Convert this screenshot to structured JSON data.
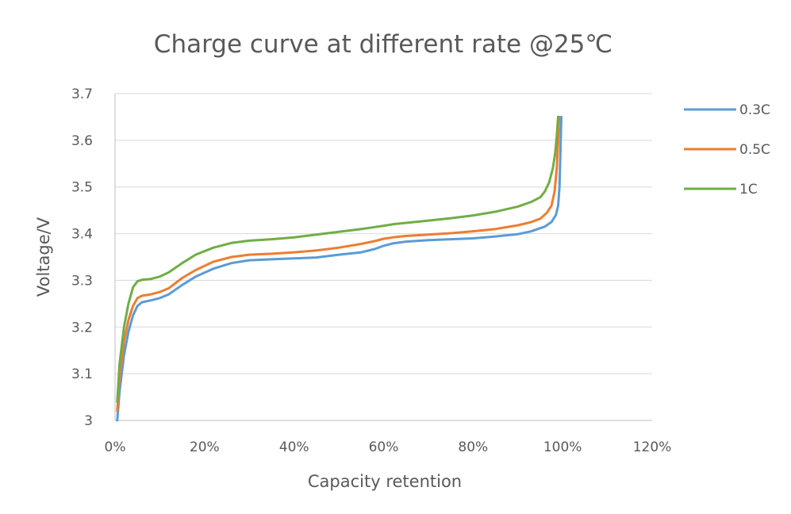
{
  "chart_data": {
    "type": "line",
    "title": "Charge curve at different rate @25℃",
    "xlabel": "Capacity retention",
    "ylabel": "Voltage/V",
    "xlim": [
      0,
      120
    ],
    "ylim": [
      3.0,
      3.7
    ],
    "x_ticks": [
      0,
      20,
      40,
      60,
      80,
      100,
      120
    ],
    "x_tick_labels": [
      "0%",
      "20%",
      "40%",
      "60%",
      "80%",
      "100%",
      "120%"
    ],
    "y_ticks": [
      3.0,
      3.1,
      3.2,
      3.3,
      3.4,
      3.5,
      3.6,
      3.7
    ],
    "y_tick_labels": [
      "3",
      "3.1",
      "3.2",
      "3.3",
      "3.4",
      "3.5",
      "3.6",
      "3.7"
    ],
    "grid": true,
    "legend_position": "right",
    "series": [
      {
        "name": "0.3C",
        "color": "#5b9bd5",
        "x": [
          0.5,
          1.0,
          2.0,
          3.0,
          4.0,
          5.0,
          6.0,
          8.0,
          10.0,
          12.0,
          15.0,
          18.0,
          22.0,
          26.0,
          30.0,
          35.0,
          40.0,
          45.0,
          50.0,
          55.0,
          58.0,
          60.0,
          62.0,
          65.0,
          70.0,
          75.0,
          80.0,
          85.0,
          90.0,
          93.0,
          96.0,
          97.5,
          98.5,
          99.0,
          99.3,
          99.5,
          99.7
        ],
        "values": [
          3.0,
          3.06,
          3.14,
          3.19,
          3.225,
          3.245,
          3.253,
          3.257,
          3.262,
          3.27,
          3.29,
          3.308,
          3.325,
          3.337,
          3.343,
          3.345,
          3.347,
          3.349,
          3.355,
          3.36,
          3.367,
          3.374,
          3.379,
          3.383,
          3.386,
          3.388,
          3.39,
          3.394,
          3.399,
          3.405,
          3.415,
          3.425,
          3.44,
          3.46,
          3.5,
          3.57,
          3.65
        ]
      },
      {
        "name": "0.5C",
        "color": "#ed7d31",
        "x": [
          0.5,
          1.0,
          2.0,
          3.0,
          4.0,
          5.0,
          6.0,
          8.0,
          10.0,
          12.0,
          15.0,
          18.0,
          22.0,
          26.0,
          30.0,
          35.0,
          40.0,
          45.0,
          50.0,
          55.0,
          58.0,
          60.0,
          62.0,
          65.0,
          70.0,
          75.0,
          80.0,
          85.0,
          90.0,
          93.0,
          95.0,
          96.5,
          97.5,
          98.2,
          98.7,
          99.0,
          99.2
        ],
        "values": [
          3.02,
          3.09,
          3.17,
          3.215,
          3.245,
          3.262,
          3.267,
          3.27,
          3.275,
          3.283,
          3.305,
          3.322,
          3.34,
          3.35,
          3.355,
          3.357,
          3.36,
          3.364,
          3.37,
          3.378,
          3.384,
          3.389,
          3.392,
          3.395,
          3.398,
          3.401,
          3.405,
          3.41,
          3.418,
          3.425,
          3.432,
          3.445,
          3.46,
          3.49,
          3.54,
          3.6,
          3.65
        ]
      },
      {
        "name": "1C",
        "color": "#70ad47",
        "x": [
          0.5,
          1.0,
          2.0,
          3.0,
          4.0,
          5.0,
          6.0,
          8.0,
          10.0,
          12.0,
          15.0,
          18.0,
          22.0,
          26.0,
          30.0,
          35.0,
          40.0,
          45.0,
          50.0,
          55.0,
          58.0,
          60.0,
          62.0,
          65.0,
          70.0,
          75.0,
          80.0,
          85.0,
          90.0,
          93.0,
          95.0,
          96.0,
          97.0,
          97.8,
          98.3,
          98.7,
          99.0
        ],
        "values": [
          3.04,
          3.12,
          3.2,
          3.25,
          3.285,
          3.298,
          3.301,
          3.303,
          3.308,
          3.317,
          3.337,
          3.355,
          3.37,
          3.38,
          3.385,
          3.388,
          3.392,
          3.398,
          3.404,
          3.41,
          3.414,
          3.417,
          3.42,
          3.423,
          3.428,
          3.433,
          3.439,
          3.447,
          3.458,
          3.468,
          3.478,
          3.49,
          3.51,
          3.54,
          3.57,
          3.61,
          3.65
        ]
      }
    ]
  }
}
